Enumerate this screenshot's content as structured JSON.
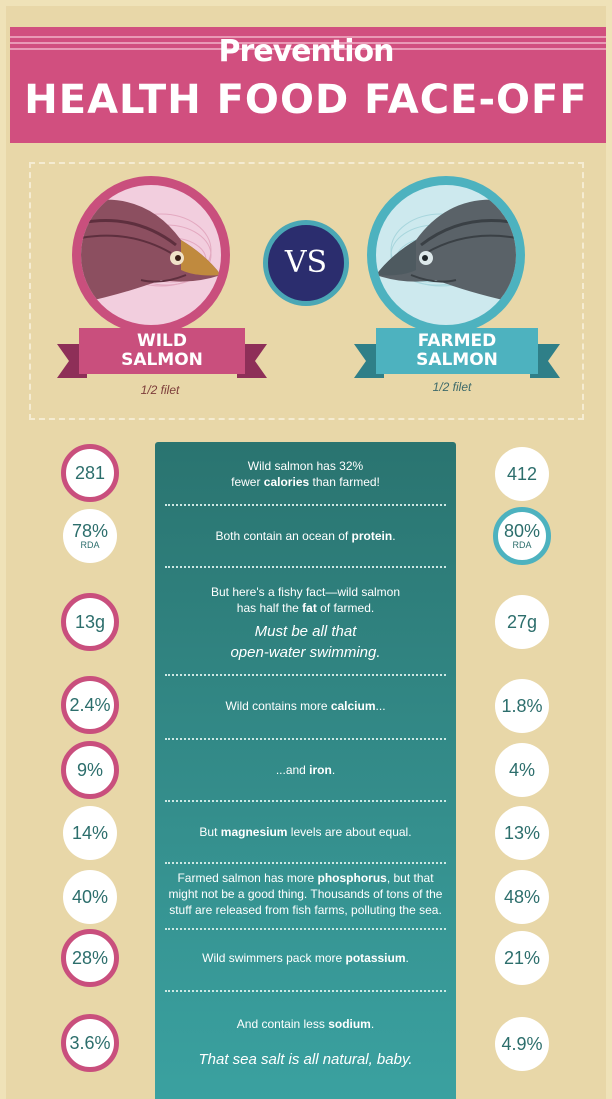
{
  "header": {
    "brand": "Prevention",
    "title": "HEALTH FOOD FACE-OFF"
  },
  "compare": {
    "vs_label": "VS",
    "wild": {
      "label_line1": "WILD",
      "label_line2": "SALMON",
      "portion": "1/2 filet"
    },
    "farmed": {
      "label_line1": "FARMED",
      "label_line2": "SALMON",
      "portion": "1/2 filet"
    }
  },
  "rows": [
    {
      "wild": "281",
      "farmed": "412",
      "text_parts": [
        "Wild salmon has 32%",
        "fewer ",
        "calories",
        " than farmed!"
      ],
      "highlight": "wild"
    },
    {
      "wild": "78%",
      "wild_sub": "RDA",
      "farmed": "80%",
      "farmed_sub": "RDA",
      "text_parts": [
        "Both contain an ocean of ",
        "protein",
        "."
      ],
      "highlight": "farmed"
    },
    {
      "wild": "13g",
      "farmed": "27g",
      "text_parts": [
        "But here's a fishy fact—wild salmon",
        "has half the ",
        "fat",
        " of farmed."
      ],
      "note_line1": "Must be all that",
      "note_line2": "open-water swimming.",
      "highlight": "wild"
    },
    {
      "wild": "2.4%",
      "farmed": "1.8%",
      "text_parts": [
        "Wild contains more ",
        "calcium",
        "..."
      ],
      "highlight": "wild"
    },
    {
      "wild": "9%",
      "farmed": "4%",
      "text_parts": [
        "...and ",
        "iron",
        "."
      ],
      "highlight": "wild"
    },
    {
      "wild": "14%",
      "farmed": "13%",
      "text_parts": [
        "But ",
        "magnesium",
        " levels are about equal."
      ],
      "highlight": "none"
    },
    {
      "wild": "40%",
      "farmed": "48%",
      "text_parts": [
        "Farmed salmon has more ",
        "phosphorus",
        ", but that",
        "might not be a good thing. Thousands of tons of the",
        "stuff are released from fish farms, polluting the sea."
      ],
      "highlight": "none"
    },
    {
      "wild": "28%",
      "farmed": "21%",
      "text_parts": [
        "Wild swimmers pack more ",
        "potassium",
        "."
      ],
      "highlight": "wild"
    },
    {
      "wild": "3.6%",
      "farmed": "4.9%",
      "text_parts": [
        "And contain less ",
        "sodium",
        "."
      ],
      "note_line1": "That sea salt is all natural, baby.",
      "highlight": "wild"
    }
  ],
  "colors": {
    "pink": "#c94f7d",
    "teal": "#4db2bf",
    "panel": "#2f827f",
    "background": "#e8d7a8"
  }
}
